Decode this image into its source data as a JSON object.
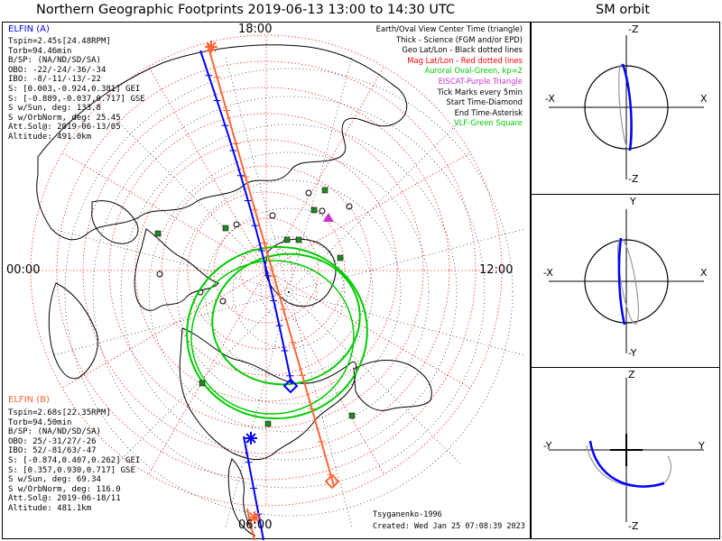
{
  "header": {
    "title": "Northern Geographic Footprints 2019-06-13 13:00 to 14:30 UTC",
    "side_title": "SM orbit"
  },
  "map": {
    "clock_top": "18:00",
    "clock_left": "00:00",
    "clock_right": "12:00",
    "clock_bottom": "06:00"
  },
  "legend": [
    {
      "text": "Earth/Oval View Center Time (triangle)",
      "color": "#000000"
    },
    {
      "text": "Thick - Science (FGM and/or EPD)",
      "color": "#000000"
    },
    {
      "text": "Geo Lat/Lon - Black dotted lines",
      "color": "#000000"
    },
    {
      "text": "Mag Lat/Lon - Red dotted lines",
      "color": "#ff0000"
    },
    {
      "text": "Auroral Oval-Green, kp=2",
      "color": "#00cc00"
    },
    {
      "text": "EISCAT-Purple Triangle",
      "color": "#cc33cc"
    },
    {
      "text": "Tick Marks every 5min",
      "color": "#000000"
    },
    {
      "text": "Start Time-Diamond",
      "color": "#000000"
    },
    {
      "text": "End Time-Asterisk",
      "color": "#000000"
    },
    {
      "text": "VLF-Green Square",
      "color": "#00cc00"
    }
  ],
  "elfin_a": {
    "name": "ELFIN (A)",
    "color": "#0000ff",
    "lines": [
      "Tspin=2.45s[24.48RPM]",
      "Torb=94.46min",
      "B/SP: (NA/ND/SD/SA)",
      "OBO: -22/-24/-36/-34",
      "IBO: -8/-11/-13/-22",
      "S: [0.003,-0.924,0.381] GEI",
      "S: [-0.889,-0.037,0.717] GSE",
      "S w/Sun, deg: 133.8",
      "S w/OrbNorm, deg: 25.45",
      "Att.Sol@: 2019-06-13/05",
      "Altitude: 491.0km"
    ]
  },
  "elfin_b": {
    "name": "ELFIN (B)",
    "color": "#ff6633",
    "lines": [
      "Tspin=2.68s[22.35RPM]",
      "Torb=94.50min",
      "B/SP: (NA/ND/SD/SA)",
      "OBO: 25/-31/27/-26",
      "IBO: 52/-81/63/-47",
      "S: [-0.874,0.407,0.262] GEI",
      "S: [0.357,0.930,0.717] GSE",
      "S w/Sun, deg: 69.34",
      "S w/OrbNorm, deg: 116.0",
      "Att.Sol@: 2019-06-18/11",
      "Altitude: 481.1km"
    ]
  },
  "credits": {
    "model": "Tsyganenko-1996",
    "created": "Created: Wed Jan 25 07:08:39 2023"
  },
  "orbit_panels": [
    {
      "top": "-Z",
      "bottom": "-Z",
      "left": "-X",
      "right": "X"
    },
    {
      "top": "Y",
      "bottom": "-Y",
      "left": "-X",
      "right": "X"
    },
    {
      "top": "Z",
      "bottom": "-Z",
      "left": "-Y",
      "right": "Y"
    }
  ],
  "colors": {
    "elfin_a": "#0000ff",
    "elfin_b": "#ff6633",
    "mag_grid": "#ff0000",
    "geo_grid": "#000000",
    "oval": "#00cc00",
    "eiscat": "#cc33cc",
    "vlf": "#228822"
  }
}
